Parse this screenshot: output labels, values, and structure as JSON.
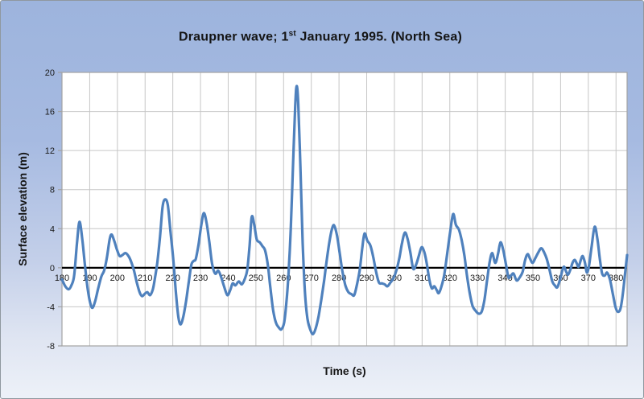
{
  "chart": {
    "title": {
      "part1": "Draupner wave; 1",
      "superscript": "st",
      "part2": " January 1995. (North Sea)"
    },
    "y_axis": {
      "label": "Surface elevation (m)"
    },
    "x_axis": {
      "label": "Time (s)"
    }
  },
  "colors": {
    "line": "#4F81BD",
    "plot_background": "#ffffff",
    "gridline": "#c6c6c6",
    "plot_border": "#a3a3a3",
    "zero_axis": "#000000",
    "tick_text": "#1a1a1a"
  },
  "chart_data": {
    "type": "line",
    "title": "Draupner wave; 1st January 1995. (North Sea)",
    "xlabel": "Time (s)",
    "ylabel": "Surface elevation (m)",
    "xlim": [
      180,
      384
    ],
    "ylim": [
      -8,
      20
    ],
    "x_ticks": [
      180,
      190,
      200,
      210,
      220,
      230,
      240,
      250,
      260,
      270,
      280,
      290,
      300,
      310,
      320,
      330,
      340,
      350,
      360,
      370,
      380
    ],
    "y_ticks": [
      -8,
      -4,
      0,
      4,
      8,
      12,
      16,
      20
    ],
    "grid": true,
    "legend": "none",
    "series": [
      {
        "name": "Surface elevation",
        "points": [
          [
            180,
            -1.2
          ],
          [
            181.2,
            -1.9
          ],
          [
            182.4,
            -2.2
          ],
          [
            183.4,
            -1.8
          ],
          [
            184.4,
            -0.8
          ],
          [
            185.4,
            2.5
          ],
          [
            186.3,
            4.7
          ],
          [
            187.3,
            3.0
          ],
          [
            188.3,
            0.2
          ],
          [
            189.3,
            -2.2
          ],
          [
            190.2,
            -3.6
          ],
          [
            191,
            -4.1
          ],
          [
            192,
            -3.4
          ],
          [
            193,
            -2.2
          ],
          [
            194.2,
            -0.9
          ],
          [
            195.2,
            -0.3
          ],
          [
            196.2,
            1.0
          ],
          [
            197.2,
            2.9
          ],
          [
            197.9,
            3.4
          ],
          [
            198.8,
            2.8
          ],
          [
            199.8,
            1.9
          ],
          [
            200.8,
            1.2
          ],
          [
            201.8,
            1.3
          ],
          [
            202.9,
            1.5
          ],
          [
            204,
            1.2
          ],
          [
            205,
            0.6
          ],
          [
            206,
            -0.3
          ],
          [
            207,
            -1.5
          ],
          [
            208,
            -2.5
          ],
          [
            208.9,
            -2.9
          ],
          [
            209.8,
            -2.7
          ],
          [
            210.8,
            -2.5
          ],
          [
            211.8,
            -2.8
          ],
          [
            212.8,
            -2.2
          ],
          [
            213.6,
            -1.0
          ],
          [
            214.4,
            0.5
          ],
          [
            215.4,
            3.2
          ],
          [
            216.3,
            6.2
          ],
          [
            217.2,
            7.0
          ],
          [
            218.2,
            6.4
          ],
          [
            219.2,
            3.6
          ],
          [
            220.2,
            0.8
          ],
          [
            221.2,
            -2.8
          ],
          [
            222,
            -5.0
          ],
          [
            222.8,
            -5.8
          ],
          [
            223.8,
            -5.0
          ],
          [
            224.8,
            -3.4
          ],
          [
            225.8,
            -1.4
          ],
          [
            226.7,
            0.3
          ],
          [
            227.5,
            0.7
          ],
          [
            228.3,
            0.9
          ],
          [
            229.3,
            2.4
          ],
          [
            230.3,
            4.4
          ],
          [
            231.2,
            5.6
          ],
          [
            232.2,
            4.6
          ],
          [
            233.2,
            2.6
          ],
          [
            234.2,
            0.4
          ],
          [
            235.3,
            -0.6
          ],
          [
            236.4,
            -0.3
          ],
          [
            237.4,
            -0.9
          ],
          [
            238.5,
            -1.9
          ],
          [
            239.7,
            -2.8
          ],
          [
            240.7,
            -2.3
          ],
          [
            241.6,
            -1.6
          ],
          [
            242.6,
            -1.8
          ],
          [
            243.8,
            -1.4
          ],
          [
            244.9,
            -1.7
          ],
          [
            245.9,
            -1.2
          ],
          [
            246.9,
            -0.2
          ],
          [
            247.7,
            2.2
          ],
          [
            248.5,
            5.2
          ],
          [
            249.4,
            4.4
          ],
          [
            250.3,
            2.9
          ],
          [
            251.4,
            2.6
          ],
          [
            252.4,
            2.2
          ],
          [
            253.3,
            1.8
          ],
          [
            254.3,
            0.3
          ],
          [
            255.2,
            -2.0
          ],
          [
            256.2,
            -4.3
          ],
          [
            257.2,
            -5.6
          ],
          [
            258.2,
            -6.1
          ],
          [
            259.2,
            -6.3
          ],
          [
            260.2,
            -5.6
          ],
          [
            261,
            -3.6
          ],
          [
            261.8,
            -0.5
          ],
          [
            262.6,
            4.0
          ],
          [
            263.4,
            10.5
          ],
          [
            264.2,
            16.5
          ],
          [
            264.7,
            18.6
          ],
          [
            265.3,
            16.8
          ],
          [
            266.1,
            10.0
          ],
          [
            266.9,
            2.5
          ],
          [
            267.7,
            -2.5
          ],
          [
            268.6,
            -5.2
          ],
          [
            269.6,
            -6.3
          ],
          [
            270.6,
            -6.8
          ],
          [
            271.6,
            -6.2
          ],
          [
            272.6,
            -5.0
          ],
          [
            273.6,
            -3.3
          ],
          [
            274.6,
            -1.4
          ],
          [
            275.5,
            0.6
          ],
          [
            276.5,
            2.6
          ],
          [
            277.4,
            3.9
          ],
          [
            278.2,
            4.35
          ],
          [
            279.2,
            3.4
          ],
          [
            280.2,
            1.6
          ],
          [
            281.2,
            -0.3
          ],
          [
            282.3,
            -1.8
          ],
          [
            283.4,
            -2.5
          ],
          [
            284.5,
            -2.7
          ],
          [
            285.5,
            -2.8
          ],
          [
            286.5,
            -1.7
          ],
          [
            287.5,
            -0.2
          ],
          [
            288.4,
            2.0
          ],
          [
            289.2,
            3.5
          ],
          [
            290.2,
            2.8
          ],
          [
            291.3,
            2.3
          ],
          [
            292.3,
            1.2
          ],
          [
            293.3,
            -0.3
          ],
          [
            294.4,
            -1.5
          ],
          [
            295.5,
            -1.6
          ],
          [
            296.5,
            -1.7
          ],
          [
            297.5,
            -1.9
          ],
          [
            298.6,
            -1.5
          ],
          [
            299.6,
            -1.1
          ],
          [
            300.7,
            -0.3
          ],
          [
            301.8,
            1.0
          ],
          [
            302.8,
            2.6
          ],
          [
            303.8,
            3.6
          ],
          [
            304.8,
            2.9
          ],
          [
            305.8,
            1.5
          ],
          [
            306.8,
            -0.1
          ],
          [
            307.8,
            0.3
          ],
          [
            308.8,
            1.2
          ],
          [
            309.8,
            2.1
          ],
          [
            310.8,
            1.6
          ],
          [
            311.7,
            0.4
          ],
          [
            312.6,
            -1.2
          ],
          [
            313.5,
            -2.1
          ],
          [
            314.4,
            -1.9
          ],
          [
            315.3,
            -2.3
          ],
          [
            316,
            -2.6
          ],
          [
            317,
            -1.9
          ],
          [
            318,
            -0.7
          ],
          [
            319,
            1.3
          ],
          [
            320.1,
            3.6
          ],
          [
            321.2,
            5.5
          ],
          [
            322.2,
            4.4
          ],
          [
            323.3,
            3.9
          ],
          [
            324.3,
            2.8
          ],
          [
            325.3,
            1.2
          ],
          [
            326.2,
            -0.8
          ],
          [
            327.2,
            -2.6
          ],
          [
            328.2,
            -3.9
          ],
          [
            329.3,
            -4.4
          ],
          [
            330.4,
            -4.7
          ],
          [
            331.5,
            -4.5
          ],
          [
            332.5,
            -3.3
          ],
          [
            333.5,
            -1.2
          ],
          [
            334.4,
            0.6
          ],
          [
            335.3,
            1.5
          ],
          [
            336.4,
            0.5
          ],
          [
            337.4,
            1.4
          ],
          [
            338.3,
            2.6
          ],
          [
            339.3,
            1.8
          ],
          [
            340.3,
            0.3
          ],
          [
            341.2,
            -1.0
          ],
          [
            342.1,
            -0.8
          ],
          [
            343,
            -0.6
          ],
          [
            344.1,
            -1.3
          ],
          [
            345.2,
            -1.0
          ],
          [
            346.3,
            -0.4
          ],
          [
            347.2,
            0.8
          ],
          [
            348.1,
            1.4
          ],
          [
            349,
            0.9
          ],
          [
            349.9,
            0.5
          ],
          [
            350.9,
            1.0
          ],
          [
            352,
            1.6
          ],
          [
            353,
            2.0
          ],
          [
            354,
            1.6
          ],
          [
            355,
            0.9
          ],
          [
            356,
            -0.2
          ],
          [
            357,
            -1.4
          ],
          [
            357.9,
            -1.8
          ],
          [
            358.8,
            -2.0
          ],
          [
            359.8,
            -1.2
          ],
          [
            360.7,
            -0.2
          ],
          [
            361.3,
            0.1
          ],
          [
            362,
            -0.4
          ],
          [
            362.7,
            -0.7
          ],
          [
            363.5,
            -0.2
          ],
          [
            364.3,
            0.5
          ],
          [
            365.1,
            0.8
          ],
          [
            365.9,
            0.4
          ],
          [
            366.5,
            0.1
          ],
          [
            367.3,
            0.8
          ],
          [
            368,
            1.2
          ],
          [
            368.8,
            0.5
          ],
          [
            369.5,
            -0.5
          ],
          [
            370.3,
            0.3
          ],
          [
            371.2,
            2.2
          ],
          [
            372.3,
            4.2
          ],
          [
            373.3,
            2.9
          ],
          [
            374.2,
            0.8
          ],
          [
            375,
            -0.6
          ],
          [
            375.9,
            -0.8
          ],
          [
            376.8,
            -0.5
          ],
          [
            377.8,
            -1.2
          ],
          [
            378.8,
            -2.6
          ],
          [
            379.8,
            -4.0
          ],
          [
            380.6,
            -4.5
          ],
          [
            381.6,
            -4.2
          ],
          [
            382.5,
            -2.6
          ],
          [
            383.3,
            -0.5
          ],
          [
            384,
            1.3
          ]
        ]
      }
    ]
  }
}
